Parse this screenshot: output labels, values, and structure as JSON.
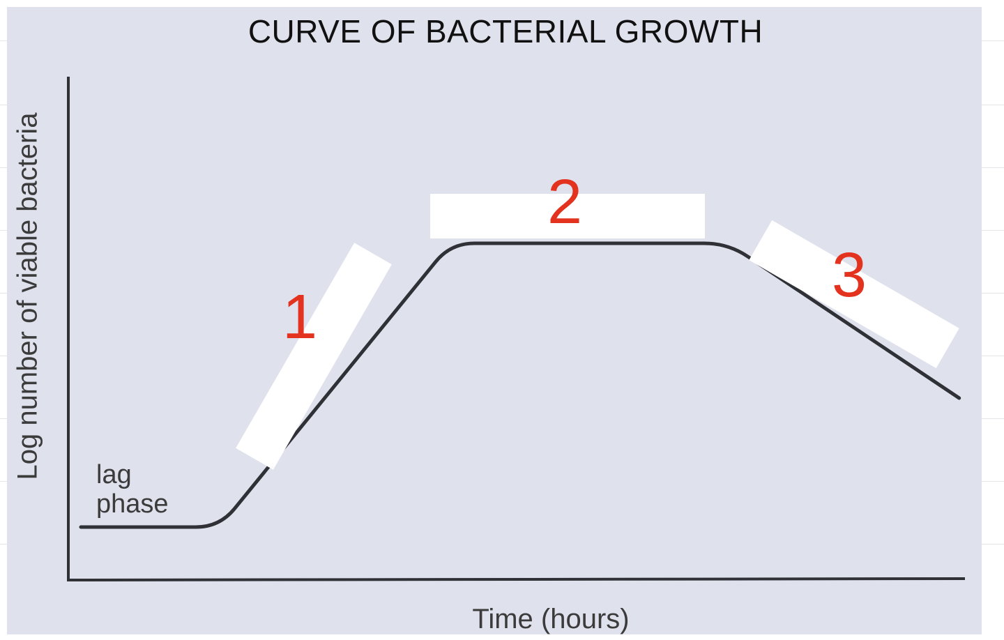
{
  "chart_data": {
    "type": "line",
    "title": "CURVE OF BACTERIAL GROWTH",
    "xlabel": "Time (hours)",
    "ylabel": "Log number of viable bacteria",
    "x_ticks": false,
    "y_ticks": false,
    "grid": false,
    "series": [
      {
        "values": [
          {
            "x": 0.0,
            "y": 0.0
          },
          {
            "x": 1.5,
            "y": 0.0
          },
          {
            "x": 4.0,
            "y": 4.4
          },
          {
            "x": 7.0,
            "y": 4.4
          },
          {
            "x": 9.5,
            "y": 2.0
          }
        ]
      }
    ],
    "annotations": [
      {
        "text": "lag\nphase",
        "lines": [
          "lag",
          "phase"
        ]
      }
    ],
    "answer_blanks": [
      {
        "number": "1"
      },
      {
        "number": "2"
      },
      {
        "number": "3"
      }
    ]
  },
  "colors": {
    "panel": "#dfe1ed",
    "curve": "#2f3136",
    "marker": "#e3321e",
    "blank": "#ffffff"
  }
}
